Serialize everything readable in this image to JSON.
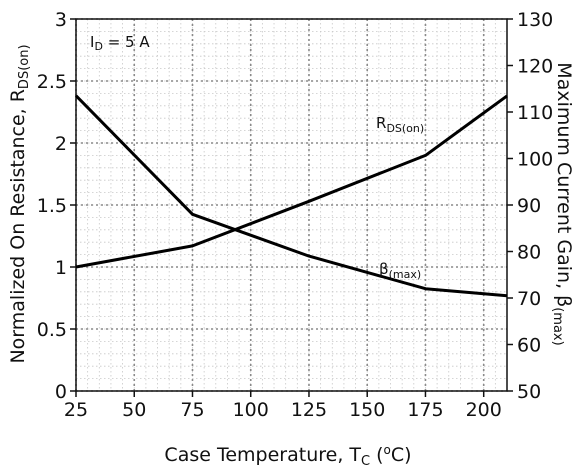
{
  "chart_data": {
    "type": "line",
    "xlabel": "Case Temperature, T",
    "xlabel_sub": "C",
    "xlabel_unit_open": " (",
    "xlabel_unit_sup": "o",
    "xlabel_unit_close": "C)",
    "ylabel_left": "Normalized On Resistance, R",
    "ylabel_left_sub": "DS(on)",
    "ylabel_right": "Maximum Current Gain,  β",
    "ylabel_right_sub": "(max)",
    "x": {
      "min": 25,
      "max": 210,
      "ticks": [
        25,
        50,
        75,
        100,
        125,
        150,
        175,
        200
      ]
    },
    "y_left": {
      "min": 0,
      "max": 3,
      "ticks": [
        "0",
        "0.5",
        "1",
        "1.5",
        "2",
        "2.5",
        "3"
      ],
      "tick_values": [
        0,
        0.5,
        1,
        1.5,
        2,
        2.5,
        3
      ]
    },
    "y_right": {
      "min": 50,
      "max": 130,
      "ticks": [
        "50",
        "60",
        "70",
        "80",
        "90",
        "100",
        "110",
        "120",
        "130"
      ],
      "tick_values": [
        50,
        60,
        70,
        80,
        90,
        100,
        110,
        120,
        130
      ]
    },
    "grid": true,
    "annotation_condition": {
      "prefix": "I",
      "sub": "D",
      "suffix": " = 5 A"
    },
    "series": [
      {
        "label": "R",
        "label_sub": "DS(on)",
        "axis": "left",
        "points": [
          [
            25,
            1.0
          ],
          [
            75,
            1.17
          ],
          [
            125,
            1.53
          ],
          [
            175,
            1.9
          ],
          [
            210,
            2.38
          ]
        ]
      },
      {
        "label": "β",
        "label_sub": "(max)",
        "axis": "right",
        "points": [
          [
            25,
            113.5
          ],
          [
            75,
            88
          ],
          [
            125,
            79
          ],
          [
            175,
            72
          ],
          [
            210,
            70.5
          ]
        ]
      }
    ],
    "color": "#000000"
  }
}
